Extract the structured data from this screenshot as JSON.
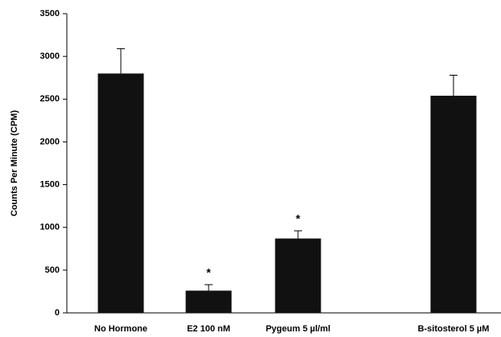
{
  "chart_data": {
    "type": "bar",
    "y_label": "Counts Per Minute (CPM)",
    "categories": [
      "No Hormone",
      "E2 100 nM",
      "Pygeum 5 µl/ml",
      "B-sitosterol 5 µM"
    ],
    "values": [
      2800,
      260,
      870,
      2540
    ],
    "errors": [
      290,
      70,
      90,
      240
    ],
    "significance": [
      null,
      "*",
      "*",
      null
    ],
    "color": "#111111",
    "ylim": [
      0,
      3500
    ],
    "yticks": [
      0,
      500,
      1000,
      1500,
      2000,
      2500,
      3000,
      3500
    ],
    "grid": false
  }
}
